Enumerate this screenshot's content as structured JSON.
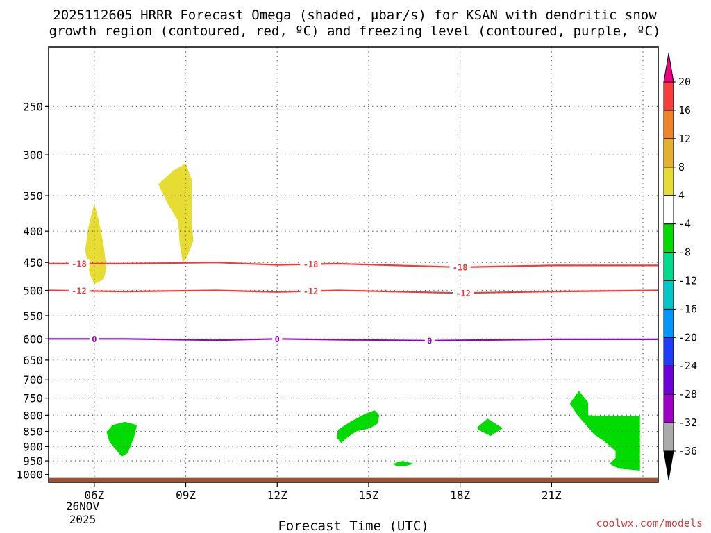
{
  "chart_data": {
    "type": "heatmap",
    "title_line1": "2025112605 HRRR Forecast Omega (shaded, μbar/s) for KSAN with dendritic snow",
    "title_line2": "growth region (contoured, red, ºC) and freezing level (contoured, purple, ºC)",
    "xlabel": "Forecast Time (UTC)",
    "credit": "coolwx.com/models",
    "x_hours_range": [
      4.5,
      24.5
    ],
    "y_pressure_range": [
      1030,
      200
    ],
    "x_ticks": [
      {
        "hour": 6,
        "label": "06Z"
      },
      {
        "hour": 9,
        "label": "09Z"
      },
      {
        "hour": 12,
        "label": "12Z"
      },
      {
        "hour": 15,
        "label": "15Z"
      },
      {
        "hour": 18,
        "label": "18Z"
      },
      {
        "hour": 21,
        "label": "21Z"
      }
    ],
    "date_label_1": "26NOV",
    "date_label_2": "2025",
    "y_ticks": [
      250,
      300,
      350,
      400,
      450,
      500,
      550,
      600,
      650,
      700,
      750,
      800,
      850,
      900,
      950,
      1000
    ],
    "x_gridlines": [
      6,
      9,
      12,
      15,
      18,
      21,
      24
    ],
    "y_gridlines": [
      250,
      300,
      350,
      400,
      450,
      500,
      550,
      600,
      650,
      700,
      750,
      800,
      850,
      900,
      950
    ],
    "colorbar": {
      "levels": [
        "-36",
        "-32",
        "-28",
        "-24",
        "-20",
        "-16",
        "-12",
        "-8",
        "-4",
        "4",
        "8",
        "12",
        "16",
        "20"
      ],
      "bins": [
        {
          "lo": -36,
          "hi": -32,
          "color": "#aaaaaa"
        },
        {
          "lo": -32,
          "hi": -28,
          "color": "#a000c8"
        },
        {
          "lo": -28,
          "hi": -24,
          "color": "#6e00dc"
        },
        {
          "lo": -24,
          "hi": -20,
          "color": "#1e3cff"
        },
        {
          "lo": -20,
          "hi": -16,
          "color": "#0096ff"
        },
        {
          "lo": -16,
          "hi": -12,
          "color": "#00c8c8"
        },
        {
          "lo": -12,
          "hi": -8,
          "color": "#00dc8c"
        },
        {
          "lo": -8,
          "hi": -4,
          "color": "#00dc00"
        },
        {
          "lo": -4,
          "hi": 4,
          "color": "#ffffff"
        },
        {
          "lo": 4,
          "hi": 8,
          "color": "#e6dc32"
        },
        {
          "lo": 8,
          "hi": 12,
          "color": "#e6af2d"
        },
        {
          "lo": 12,
          "hi": 16,
          "color": "#f08228"
        },
        {
          "lo": 16,
          "hi": 20,
          "color": "#fa3c3c"
        }
      ],
      "over_color": "#f00082",
      "under_color": "#000000"
    },
    "omega_regions": [
      {
        "name": "yellow-blob-06z",
        "color": "#e6dc32",
        "points": [
          [
            6.0,
            360
          ],
          [
            6.15,
            385
          ],
          [
            6.3,
            420
          ],
          [
            6.4,
            460
          ],
          [
            6.3,
            480
          ],
          [
            6.0,
            488
          ],
          [
            5.85,
            470
          ],
          [
            5.7,
            430
          ],
          [
            5.8,
            395
          ]
        ]
      },
      {
        "name": "yellow-blob-09z",
        "color": "#e6dc32",
        "points": [
          [
            8.1,
            335
          ],
          [
            8.6,
            318
          ],
          [
            9.0,
            310
          ],
          [
            9.2,
            330
          ],
          [
            9.2,
            390
          ],
          [
            9.25,
            415
          ],
          [
            9.05,
            440
          ],
          [
            8.9,
            450
          ],
          [
            8.8,
            420
          ],
          [
            8.75,
            385
          ],
          [
            8.4,
            360
          ]
        ]
      },
      {
        "name": "green-blob-07z",
        "color": "#00dc00",
        "points": [
          [
            6.4,
            852
          ],
          [
            6.6,
            830
          ],
          [
            7.0,
            820
          ],
          [
            7.4,
            830
          ],
          [
            7.3,
            870
          ],
          [
            7.1,
            922
          ],
          [
            6.9,
            935
          ],
          [
            6.7,
            910
          ],
          [
            6.5,
            885
          ]
        ]
      },
      {
        "name": "green-blob-15z",
        "color": "#00dc00",
        "points": [
          [
            14.0,
            845
          ],
          [
            14.4,
            820
          ],
          [
            14.9,
            795
          ],
          [
            15.2,
            785
          ],
          [
            15.35,
            800
          ],
          [
            15.3,
            825
          ],
          [
            15.05,
            840
          ],
          [
            14.6,
            850
          ],
          [
            14.3,
            870
          ],
          [
            14.1,
            888
          ],
          [
            13.95,
            870
          ]
        ]
      },
      {
        "name": "green-blob-16z",
        "color": "#00dc00",
        "points": [
          [
            15.8,
            960
          ],
          [
            16.1,
            950
          ],
          [
            16.5,
            960
          ],
          [
            16.15,
            970
          ],
          [
            15.9,
            968
          ]
        ]
      },
      {
        "name": "green-blob-19z",
        "color": "#00dc00",
        "points": [
          [
            18.55,
            838
          ],
          [
            18.9,
            810
          ],
          [
            19.4,
            840
          ],
          [
            19.0,
            865
          ],
          [
            18.6,
            845
          ]
        ]
      },
      {
        "name": "green-blob-22z",
        "color": "#00dc00",
        "points": [
          [
            21.6,
            765
          ],
          [
            21.9,
            730
          ],
          [
            22.2,
            762
          ],
          [
            22.2,
            800
          ],
          [
            22.7,
            803
          ],
          [
            23.9,
            803
          ],
          [
            23.9,
            985
          ],
          [
            23.2,
            978
          ],
          [
            22.9,
            960
          ],
          [
            23.1,
            940
          ],
          [
            23.1,
            915
          ],
          [
            22.7,
            880
          ],
          [
            22.4,
            860
          ],
          [
            21.85,
            800
          ]
        ]
      }
    ],
    "contours": [
      {
        "label": "-18",
        "color": "#ee3c3c",
        "points": [
          [
            4.5,
            452
          ],
          [
            7,
            452
          ],
          [
            10,
            450
          ],
          [
            12,
            454
          ],
          [
            14,
            452
          ],
          [
            18,
            458
          ],
          [
            21,
            455
          ],
          [
            24.5,
            455
          ]
        ],
        "label_hours": [
          5.5,
          13.1,
          18.0
        ]
      },
      {
        "label": "-12",
        "color": "#ee3c3c",
        "points": [
          [
            4.5,
            500
          ],
          [
            7,
            502
          ],
          [
            10,
            500
          ],
          [
            12,
            503
          ],
          [
            14,
            500
          ],
          [
            18,
            505
          ],
          [
            21,
            502
          ],
          [
            24.5,
            500
          ]
        ],
        "label_hours": [
          5.5,
          13.1,
          18.1
        ]
      },
      {
        "label": "0",
        "color": "#9900cc",
        "points": [
          [
            4.5,
            600
          ],
          [
            7,
            600
          ],
          [
            10,
            603
          ],
          [
            12,
            600
          ],
          [
            14,
            602
          ],
          [
            17,
            604
          ],
          [
            21,
            601
          ],
          [
            24.5,
            601
          ]
        ],
        "label_hours": [
          6.0,
          12.0,
          17.0
        ]
      }
    ],
    "terrain": {
      "color": "#a0522d",
      "top_pressure": 1013,
      "bottom_pressure": 1030
    }
  }
}
